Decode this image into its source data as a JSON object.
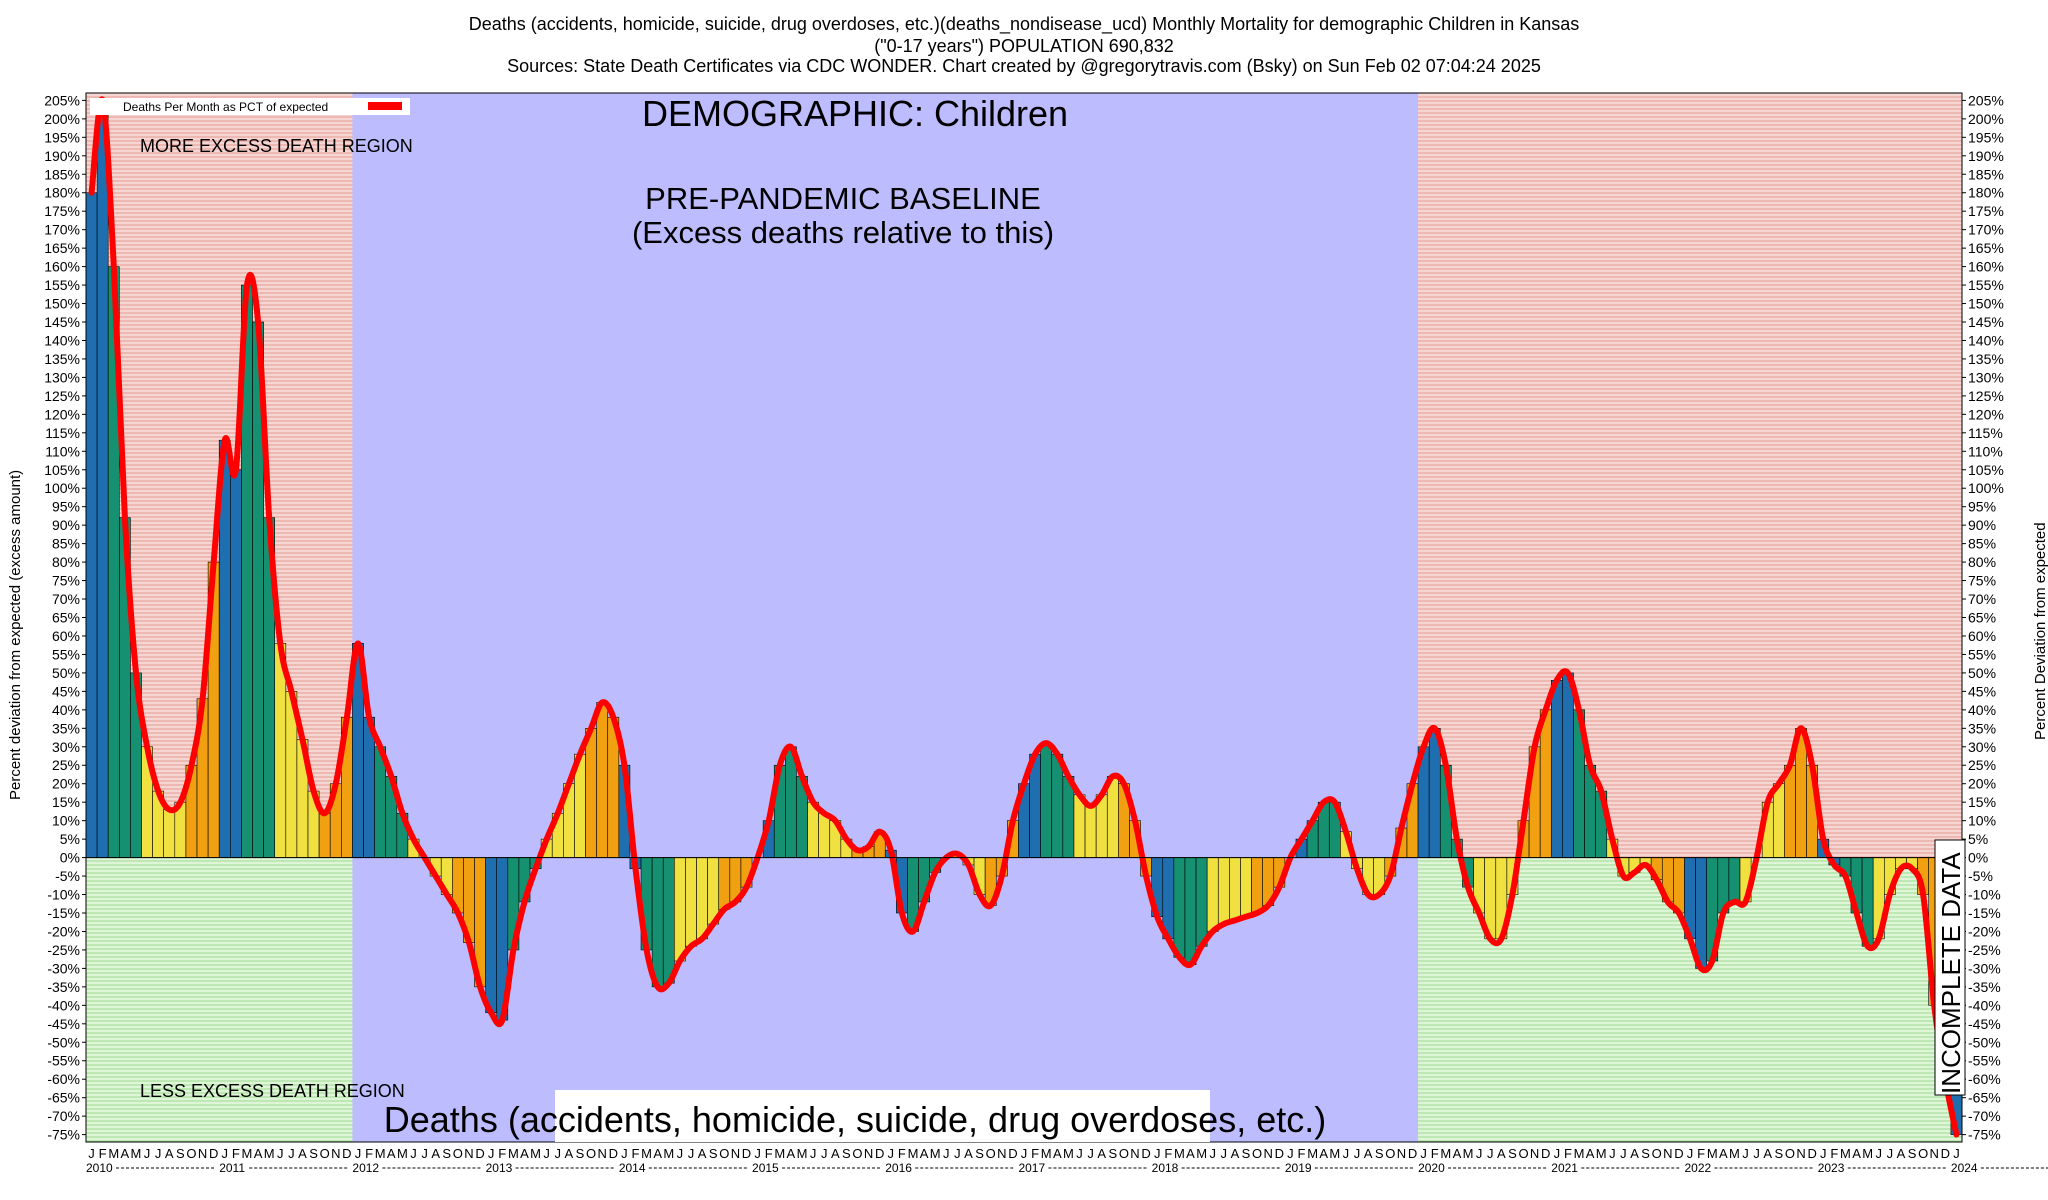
{
  "header": {
    "line1": "Deaths (accidents, homicide, suicide, drug overdoses, etc.)(deaths_nondisease_ucd) Monthly Mortality for demographic Children in Kansas",
    "line2": "(\"0-17 years\") POPULATION 690,832",
    "line3": "Sources: State Death Certificates via CDC WONDER.                Chart created by @gregorytravis.com (Bsky) on Sun Feb 02 07:04:24 2025"
  },
  "chart_data": {
    "type": "bar",
    "title": "DEMOGRAPHIC: Children",
    "subtitle": "Deaths (accidents, homicide, suicide, drug overdoses, etc.)",
    "ylabel_left": "Percent deviation from expected (excess amount)",
    "ylabel_right": "Percent Deviation from expected",
    "ylim": [
      -77,
      207
    ],
    "legend": {
      "label": "Deaths Per Month as PCT of expected",
      "color": "#ff0000",
      "position": "top-left"
    },
    "regions": {
      "more_excess": "MORE EXCESS DEATH REGION",
      "less_excess": "LESS EXCESS DEATH REGION",
      "baseline_line1": "PRE-PANDEMIC BASELINE",
      "baseline_line2": "(Excess deaths relative to this)",
      "baseline_start": "2012-01",
      "baseline_end": "2019-12",
      "incomplete_label": "INCOMPLETE DATA",
      "incomplete_start": "2024-02"
    },
    "month_letters": [
      "J",
      "F",
      "M",
      "A",
      "M",
      "J",
      "J",
      "A",
      "S",
      "O",
      "N",
      "D"
    ],
    "years": [
      "2010",
      "2011",
      "2012",
      "2013",
      "2014",
      "2015",
      "2016",
      "2017",
      "2018",
      "2019",
      "2020",
      "2021",
      "2022",
      "2023",
      "2024"
    ],
    "season_colors": [
      "#1f6fb0",
      "#1f6fb0",
      "#159070",
      "#159070",
      "#159070",
      "#f0e040",
      "#f0e040",
      "#f0e040",
      "#f0e040",
      "#f0a010",
      "#f0a010",
      "#f0a010"
    ],
    "line_color": "#ff0000",
    "values": [
      180,
      205,
      160,
      92,
      50,
      30,
      18,
      13,
      15,
      25,
      43,
      80,
      113,
      105,
      155,
      145,
      92,
      58,
      45,
      32,
      18,
      12,
      20,
      38,
      58,
      38,
      30,
      22,
      12,
      5,
      0,
      -5,
      -10,
      -15,
      -23,
      -35,
      -42,
      -44,
      -25,
      -12,
      -3,
      5,
      12,
      20,
      28,
      35,
      42,
      38,
      25,
      -3,
      -25,
      -35,
      -34,
      -28,
      -24,
      -22,
      -18,
      -14,
      -12,
      -8,
      0,
      10,
      25,
      30,
      22,
      15,
      12,
      10,
      5,
      2,
      3,
      7,
      2,
      -15,
      -20,
      -12,
      -4,
      0,
      1,
      -2,
      -10,
      -13,
      -5,
      10,
      20,
      28,
      31,
      28,
      22,
      17,
      14,
      17,
      22,
      20,
      10,
      -5,
      -16,
      -22,
      -27,
      -29,
      -24,
      -20,
      -18,
      -17,
      -16,
      -15,
      -13,
      -8,
      0,
      5,
      10,
      15,
      15,
      7,
      -3,
      -10,
      -10,
      -5,
      8,
      20,
      30,
      35,
      25,
      5,
      -8,
      -15,
      -22,
      -22,
      -10,
      10,
      30,
      40,
      48,
      50,
      40,
      25,
      18,
      5,
      -5,
      -4,
      -2,
      -6,
      -12,
      -15,
      -22,
      -30,
      -28,
      -15,
      -12,
      -12,
      0,
      15,
      20,
      25,
      35,
      25,
      5,
      -2,
      -5,
      -15,
      -24,
      -22,
      -10,
      -3,
      -3,
      -10,
      -40,
      -60,
      -75
    ]
  }
}
